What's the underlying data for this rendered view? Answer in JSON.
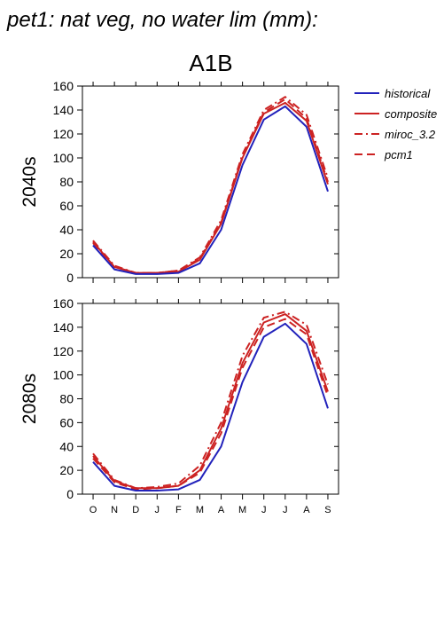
{
  "figure": {
    "title": "pet1: nat veg, no water lim (mm):",
    "scenario": "A1B"
  },
  "legend": {
    "entries": [
      {
        "name": "historical",
        "color": "#2222bb",
        "style": "solid"
      },
      {
        "name": "composite",
        "color": "#cc2222",
        "style": "solid"
      },
      {
        "name": "miroc_3.2",
        "color": "#cc2222",
        "style": "dashdot"
      },
      {
        "name": "pcm1",
        "color": "#cc2222",
        "style": "dashed"
      }
    ]
  },
  "chart_data": [
    {
      "type": "line",
      "ylabel": "2040s",
      "ylim": [
        0,
        160
      ],
      "yticks": [
        0,
        20,
        40,
        60,
        80,
        100,
        120,
        140,
        160
      ],
      "categories": [
        "O",
        "N",
        "D",
        "J",
        "F",
        "M",
        "A",
        "M",
        "J",
        "J",
        "A",
        "S"
      ],
      "series": [
        {
          "name": "historical",
          "values": [
            27,
            7,
            3,
            3,
            4,
            12,
            40,
            94,
            132,
            143,
            126,
            72
          ]
        },
        {
          "name": "composite",
          "values": [
            30,
            9,
            4,
            4,
            5,
            15,
            45,
            100,
            137,
            146,
            131,
            78
          ]
        },
        {
          "name": "miroc_3.2",
          "values": [
            31,
            10,
            4,
            4,
            6,
            17,
            48,
            103,
            140,
            151,
            136,
            83
          ]
        },
        {
          "name": "pcm1",
          "values": [
            29,
            9,
            4,
            4,
            6,
            16,
            46,
            101,
            138,
            149,
            133,
            80
          ]
        }
      ]
    },
    {
      "type": "line",
      "ylabel": "2080s",
      "ylim": [
        0,
        160
      ],
      "yticks": [
        0,
        20,
        40,
        60,
        80,
        100,
        120,
        140,
        160
      ],
      "categories": [
        "O",
        "N",
        "D",
        "J",
        "F",
        "M",
        "A",
        "M",
        "J",
        "J",
        "A",
        "S"
      ],
      "series": [
        {
          "name": "historical",
          "values": [
            27,
            7,
            3,
            3,
            4,
            12,
            40,
            94,
            132,
            143,
            126,
            72
          ]
        },
        {
          "name": "composite",
          "values": [
            32,
            11,
            5,
            5,
            7,
            20,
            55,
            110,
            144,
            151,
            137,
            86
          ]
        },
        {
          "name": "miroc_3.2",
          "values": [
            34,
            12,
            5,
            6,
            9,
            24,
            60,
            116,
            148,
            153,
            142,
            92
          ]
        },
        {
          "name": "pcm1",
          "values": [
            30,
            10,
            4,
            5,
            7,
            18,
            51,
            106,
            140,
            147,
            134,
            82
          ]
        }
      ]
    }
  ]
}
